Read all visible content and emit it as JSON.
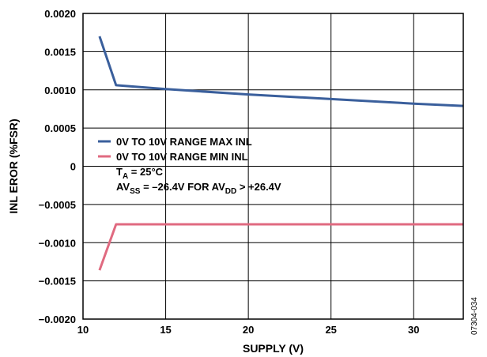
{
  "chart_data": {
    "type": "line",
    "xlabel": "SUPPLY (V)",
    "ylabel": "INL EROR (%FSR)",
    "xlim": [
      10,
      33
    ],
    "ylim": [
      -0.002,
      0.002
    ],
    "x_ticks": [
      "10",
      "15",
      "20",
      "25",
      "30"
    ],
    "y_ticks": [
      "0.0020",
      "0.0015",
      "0.0010",
      "0.0005",
      "0",
      "−0.0005",
      "−0.0010",
      "−0.0015",
      "−0.0020"
    ],
    "grid": true,
    "legend_position": "middle-left",
    "series": [
      {
        "name": "0V TO 10V RANGE MAX INL",
        "color": "#3a5f9c",
        "x": [
          11,
          12,
          15,
          20,
          25,
          30,
          33
        ],
        "y": [
          0.0017,
          0.00106,
          0.00101,
          0.00094,
          0.00088,
          0.00082,
          0.00079
        ]
      },
      {
        "name": "0V TO 10V RANGE MIN INL",
        "color": "#e06a80",
        "x": [
          11,
          12,
          15,
          20,
          25,
          30,
          33
        ],
        "y": [
          -0.00136,
          -0.00076,
          -0.00076,
          -0.00076,
          -0.00076,
          -0.00076,
          -0.00076
        ]
      }
    ],
    "annotations": {
      "ta": {
        "main": "T",
        "sub": "A",
        "rest": " = 25°C"
      },
      "avss": {
        "p1": "AV",
        "s1": "SS",
        "p2": " = –26.4V FOR AV",
        "s2": "DD",
        "p3": " > +26.4V"
      }
    },
    "figure_id": "07304-034"
  }
}
